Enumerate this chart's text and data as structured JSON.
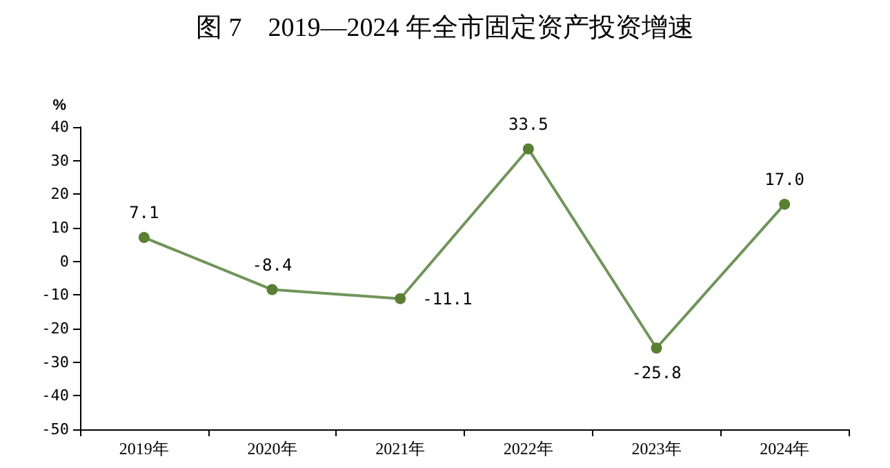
{
  "chart_data": {
    "type": "line",
    "title": "图 7　2019—2024 年全市固定资产投资增速",
    "ylabel": "%",
    "categories": [
      "2019年",
      "2020年",
      "2021年",
      "2022年",
      "2023年",
      "2024年"
    ],
    "series": [
      {
        "color": "#70945a",
        "values": [
          7.1,
          -8.4,
          -11.1,
          33.5,
          -25.8,
          17.0
        ],
        "value_labels": [
          "7.1",
          "-8.4",
          "-11.1",
          "33.5",
          "-25.8",
          "17.0"
        ]
      }
    ],
    "ylim": [
      -50,
      40
    ],
    "yticks": [
      -50,
      -40,
      -30,
      -20,
      -10,
      0,
      10,
      20,
      30,
      40
    ],
    "grid": false,
    "marker": "circle",
    "line_style": "solid"
  }
}
